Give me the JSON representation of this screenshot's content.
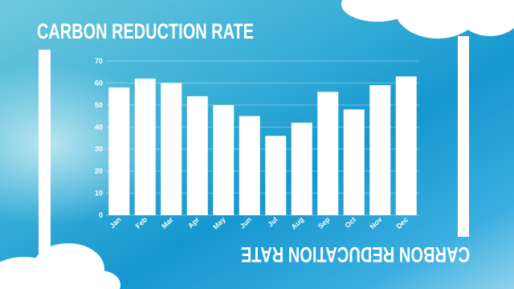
{
  "chart_data": {
    "type": "bar",
    "title": "CARBON REDUCTION RATE",
    "annotation": "CARBON REDUCATION RATE",
    "categories": [
      "Jan",
      "Feb",
      "Mar",
      "Apr",
      "May",
      "Jun",
      "Jul",
      "Aug",
      "Sep",
      "Oct",
      "Nov",
      "Dec"
    ],
    "values": [
      58,
      62,
      60,
      54,
      50,
      45,
      36,
      42,
      56,
      48,
      59,
      63
    ],
    "color": "#ffffff",
    "ylim": [
      0,
      70
    ],
    "yticks": [
      0,
      10,
      20,
      30,
      40,
      50,
      60,
      70
    ],
    "grid": true
  }
}
